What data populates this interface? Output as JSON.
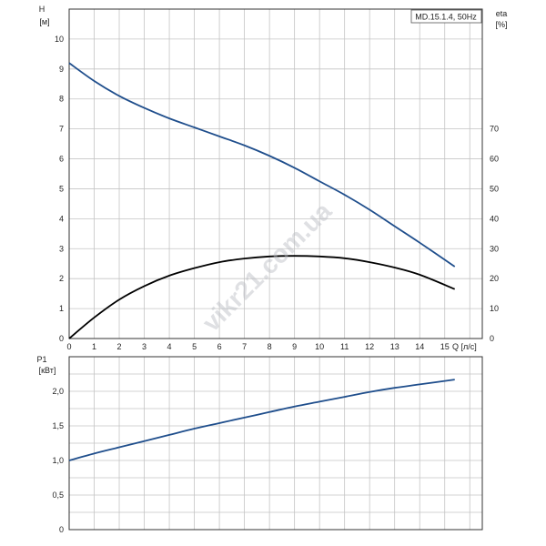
{
  "model_label": "MD.15.1.4, 50Hz",
  "watermark": "vikr21.com.ua",
  "top_chart": {
    "y_left_label": "H",
    "y_left_unit": "[м]",
    "y_right_label": "eta",
    "y_right_unit": "[%]",
    "x_label": "Q [л/с]"
  },
  "bottom_chart": {
    "y_label": "P1",
    "y_unit": "[кВт]"
  },
  "colors": {
    "grid": "#c4c4c4",
    "axis": "#333333",
    "head_curve": "#1f4e8c",
    "eta_curve": "#000000",
    "power_curve": "#1f4e8c"
  },
  "chart_data": [
    {
      "type": "line",
      "name": "head",
      "xlabel": "Q [л/с]",
      "ylabel": "H [м]",
      "xlim": [
        0,
        16.5
      ],
      "ylim": [
        0,
        11
      ],
      "x_ticks": [
        "0",
        "1",
        "2",
        "3",
        "4",
        "5",
        "6",
        "7",
        "8",
        "9",
        "10",
        "11",
        "12",
        "13",
        "14",
        "15"
      ],
      "y_left_ticks": [
        "0",
        "1",
        "2",
        "3",
        "4",
        "5",
        "6",
        "7",
        "8",
        "9",
        "10"
      ],
      "y_right_ticks": [
        "0",
        "10",
        "20",
        "30",
        "40",
        "50",
        "60",
        "70"
      ],
      "series": [
        {
          "axis": "left",
          "color": "#1f4e8c",
          "x": [
            0,
            1,
            2,
            3,
            4,
            5,
            6,
            7,
            8,
            9,
            10,
            11,
            12,
            13,
            14,
            15.4
          ],
          "y": [
            9.2,
            8.6,
            8.1,
            7.7,
            7.35,
            7.05,
            6.75,
            6.45,
            6.1,
            5.7,
            5.25,
            4.8,
            4.3,
            3.75,
            3.2,
            2.4
          ]
        },
        {
          "axis": "right",
          "color": "#000000",
          "x": [
            0,
            1,
            2,
            3,
            4,
            5,
            6,
            7,
            8,
            9,
            10,
            11,
            12,
            13,
            14,
            15.4
          ],
          "y": [
            0,
            7,
            13,
            17.5,
            21,
            23.5,
            25.5,
            26.7,
            27.4,
            27.6,
            27.4,
            26.8,
            25.5,
            23.7,
            21.3,
            16.5
          ]
        }
      ]
    },
    {
      "type": "line",
      "name": "power",
      "ylabel": "P1 [кВт]",
      "xlim": [
        0,
        16.5
      ],
      "ylim": [
        0,
        2.5
      ],
      "y_ticks": [
        "0",
        "0,5",
        "1,0",
        "1,5",
        "2,0"
      ],
      "series": [
        {
          "color": "#1f4e8c",
          "x": [
            0,
            1,
            2,
            3,
            4,
            5,
            6,
            7,
            8,
            9,
            10,
            11,
            12,
            13,
            14,
            15.4
          ],
          "y": [
            1.0,
            1.1,
            1.19,
            1.28,
            1.37,
            1.46,
            1.54,
            1.62,
            1.7,
            1.78,
            1.85,
            1.92,
            1.99,
            2.05,
            2.1,
            2.17
          ]
        }
      ]
    }
  ]
}
